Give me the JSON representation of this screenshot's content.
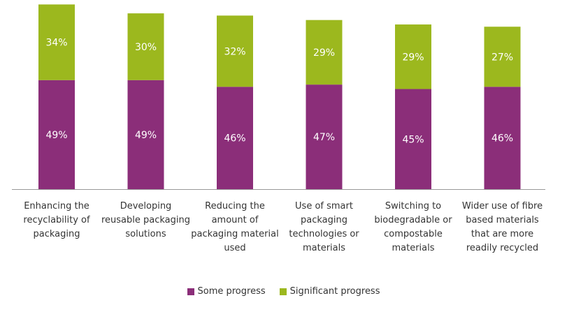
{
  "chart_data": {
    "type": "bar",
    "stacked": true,
    "categories": [
      "Enhancing the recyclability of packaging",
      "Developing reusable packaging solutions",
      "Reducing the amount of packaging material used",
      "Use of smart packaging technologies or materials",
      "Switching to biodegradable or compostable materials",
      "Wider use of fibre based materials that are more readily recycled"
    ],
    "category_lines": [
      [
        "Enhancing the",
        "recyclability of",
        "packaging"
      ],
      [
        "Developing",
        "reusable packaging",
        "solutions"
      ],
      [
        "Reducing the",
        "amount of",
        "packaging material",
        "used"
      ],
      [
        "Use of smart",
        "packaging",
        "technologies or",
        "materials"
      ],
      [
        "Switching to",
        "biodegradable or",
        "compostable",
        "materials"
      ],
      [
        "Wider use of fibre",
        "based materials",
        "that are more",
        "readily recycled"
      ]
    ],
    "series": [
      {
        "name": "Some progress",
        "color": "#8b2e79",
        "values": [
          49,
          49,
          46,
          47,
          45,
          46
        ],
        "labels": [
          "49%",
          "49%",
          "46%",
          "47%",
          "45%",
          "46%"
        ]
      },
      {
        "name": "Significant progress",
        "color": "#9cb81e",
        "values": [
          34,
          30,
          32,
          29,
          29,
          27
        ],
        "labels": [
          "34%",
          "30%",
          "32%",
          "29%",
          "29%",
          "27%"
        ]
      }
    ],
    "unit": "%",
    "ylim": [
      0,
      85
    ],
    "axis_color": "#999999",
    "legend_position": "bottom",
    "grid": false
  }
}
